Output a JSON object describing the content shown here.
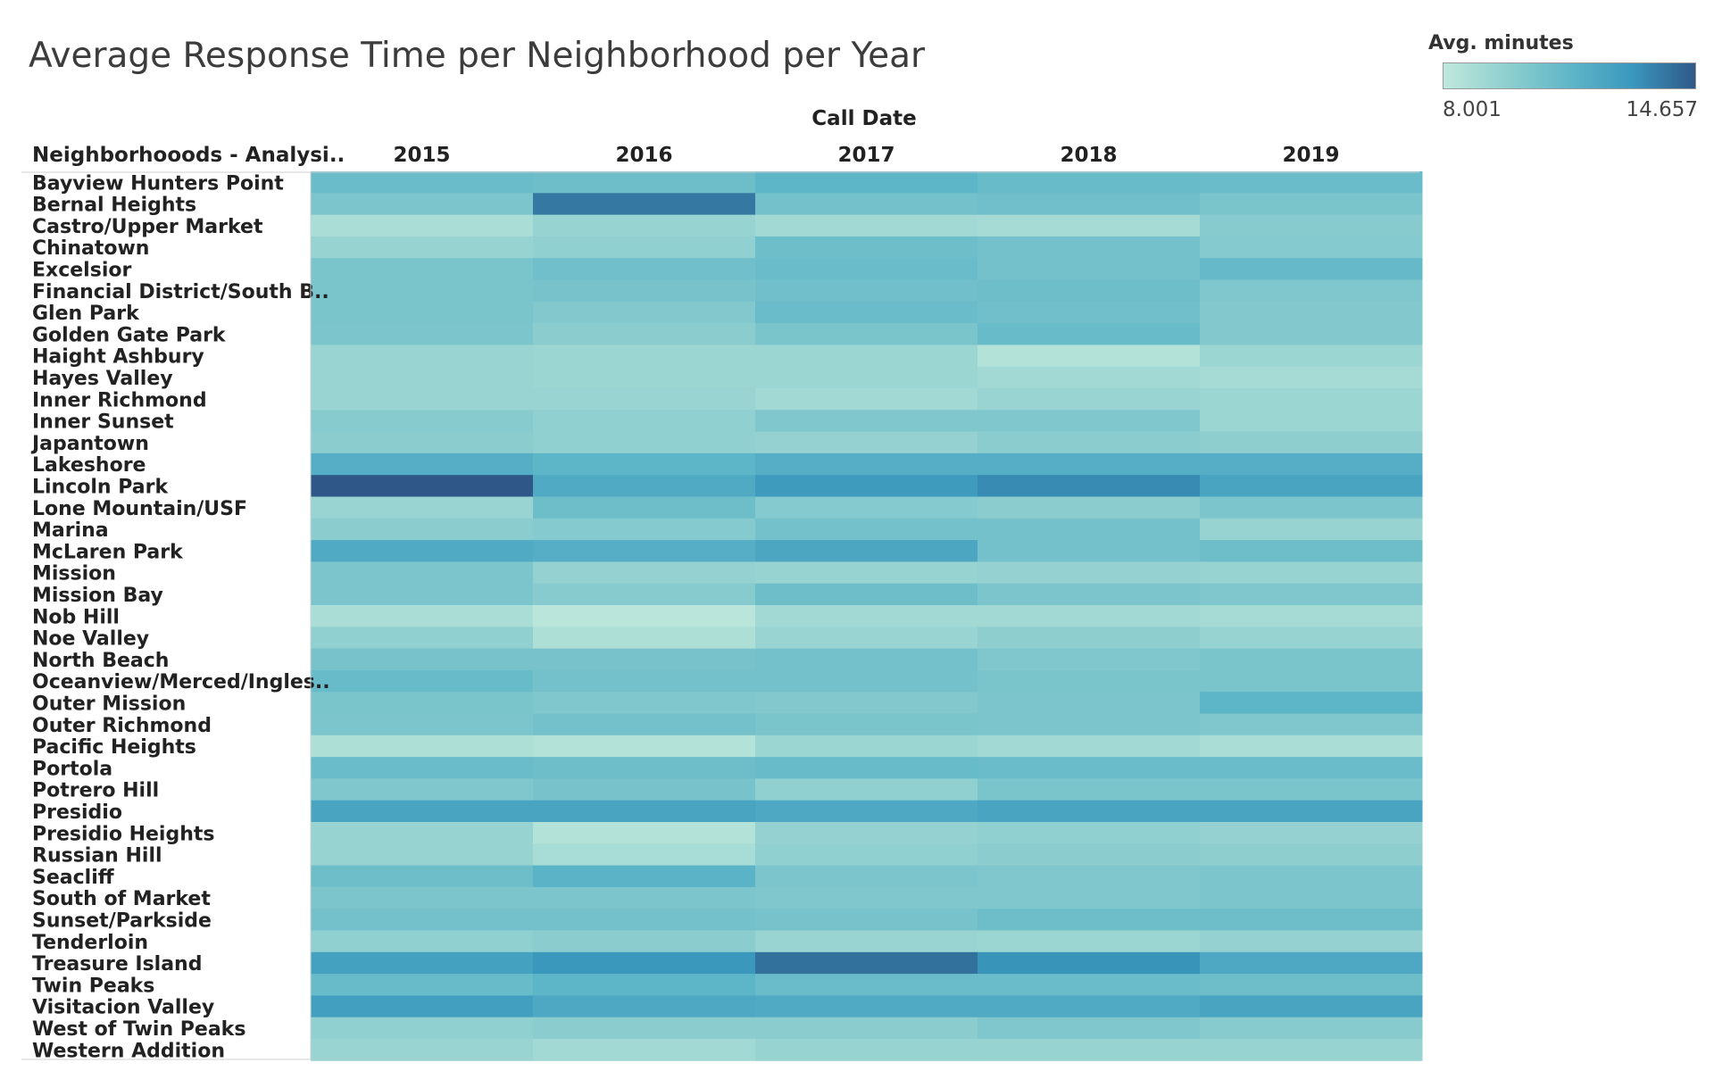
{
  "chart_data": {
    "type": "heatmap",
    "title": "Average Response Time per Neighborhood per Year",
    "column_axis_title": "Call Date",
    "row_axis_title": "Neighborhooods - Analysi..",
    "columns": [
      "2015",
      "2016",
      "2017",
      "2018",
      "2019"
    ],
    "rows": [
      "Bayview Hunters Point",
      "Bernal Heights",
      "Castro/Upper Market",
      "Chinatown",
      "Excelsior",
      "Financial District/South B..",
      "Glen Park",
      "Golden Gate Park",
      "Haight Ashbury",
      "Hayes Valley",
      "Inner Richmond",
      "Inner Sunset",
      "Japantown",
      "Lakeshore",
      "Lincoln Park",
      "Lone Mountain/USF",
      "Marina",
      "McLaren Park",
      "Mission",
      "Mission Bay",
      "Nob Hill",
      "Noe Valley",
      "North Beach",
      "Oceanview/Merced/Ingles..",
      "Outer Mission",
      "Outer Richmond",
      "Pacific Heights",
      "Portola",
      "Potrero Hill",
      "Presidio",
      "Presidio Heights",
      "Russian Hill",
      "Seacliff",
      "South of Market",
      "Sunset/Parkside",
      "Tenderloin",
      "Treasure Island",
      "Twin Peaks",
      "Visitacion Valley",
      "West of Twin Peaks",
      "Western Addition"
    ],
    "values": [
      [
        10.9,
        10.8,
        11.4,
        11.0,
        10.9
      ],
      [
        10.3,
        13.8,
        10.6,
        10.7,
        10.4
      ],
      [
        8.7,
        9.4,
        9.0,
        8.9,
        9.9
      ],
      [
        9.4,
        9.6,
        10.8,
        10.6,
        10.0
      ],
      [
        10.4,
        10.7,
        10.9,
        10.6,
        11.1
      ],
      [
        10.4,
        10.5,
        10.7,
        10.8,
        10.2
      ],
      [
        10.4,
        10.1,
        10.9,
        10.7,
        10.1
      ],
      [
        10.3,
        9.8,
        10.4,
        11.0,
        10.1
      ],
      [
        9.3,
        9.2,
        9.2,
        8.4,
        9.2
      ],
      [
        9.3,
        9.2,
        9.2,
        9.0,
        8.9
      ],
      [
        9.3,
        9.3,
        9.0,
        9.3,
        9.2
      ],
      [
        9.9,
        9.6,
        10.2,
        10.2,
        9.2
      ],
      [
        9.8,
        9.6,
        9.5,
        9.8,
        9.7
      ],
      [
        11.8,
        11.4,
        11.8,
        11.8,
        11.8
      ],
      [
        14.657,
        12.0,
        12.8,
        13.3,
        12.3
      ],
      [
        9.3,
        10.8,
        10.0,
        9.8,
        10.3
      ],
      [
        9.8,
        10.0,
        10.6,
        10.6,
        9.4
      ],
      [
        12.0,
        11.8,
        12.2,
        10.6,
        10.8
      ],
      [
        10.3,
        9.5,
        9.4,
        9.5,
        9.4
      ],
      [
        10.3,
        9.9,
        10.8,
        10.3,
        10.2
      ],
      [
        8.7,
        8.2,
        9.0,
        9.0,
        8.9
      ],
      [
        9.6,
        8.6,
        9.3,
        9.7,
        9.4
      ],
      [
        10.5,
        10.5,
        10.6,
        10.2,
        10.4
      ],
      [
        11.0,
        10.6,
        10.6,
        10.4,
        10.4
      ],
      [
        10.4,
        10.2,
        10.1,
        10.3,
        11.4
      ],
      [
        10.3,
        10.6,
        10.4,
        10.3,
        10.2
      ],
      [
        8.6,
        8.4,
        9.2,
        9.0,
        8.7
      ],
      [
        10.9,
        10.8,
        11.0,
        10.9,
        10.9
      ],
      [
        10.2,
        10.5,
        9.6,
        10.4,
        10.4
      ],
      [
        12.3,
        12.3,
        12.1,
        12.3,
        12.3
      ],
      [
        9.4,
        8.4,
        9.5,
        9.6,
        9.5
      ],
      [
        9.4,
        8.8,
        9.6,
        9.8,
        9.7
      ],
      [
        10.8,
        11.5,
        10.3,
        10.2,
        10.3
      ],
      [
        10.3,
        10.3,
        10.2,
        10.2,
        10.3
      ],
      [
        10.6,
        10.6,
        10.5,
        10.8,
        10.8
      ],
      [
        9.6,
        9.8,
        9.3,
        9.2,
        9.5
      ],
      [
        12.5,
        13.0,
        14.0,
        13.1,
        12.1
      ],
      [
        11.0,
        11.4,
        10.9,
        10.9,
        10.8
      ],
      [
        12.6,
        12.1,
        12.0,
        12.0,
        12.3
      ],
      [
        9.6,
        9.8,
        9.8,
        10.2,
        9.9
      ],
      [
        9.3,
        9.0,
        9.4,
        9.4,
        9.4
      ]
    ],
    "color_scale": {
      "title": "Avg. minutes",
      "min": 8.001,
      "max": 14.657,
      "min_label": "8.001",
      "max_label": "14.657",
      "colors": [
        "#bfe8dc",
        "#8fcfcf",
        "#5fb6c8",
        "#3a98bd",
        "#2f5888"
      ]
    }
  }
}
